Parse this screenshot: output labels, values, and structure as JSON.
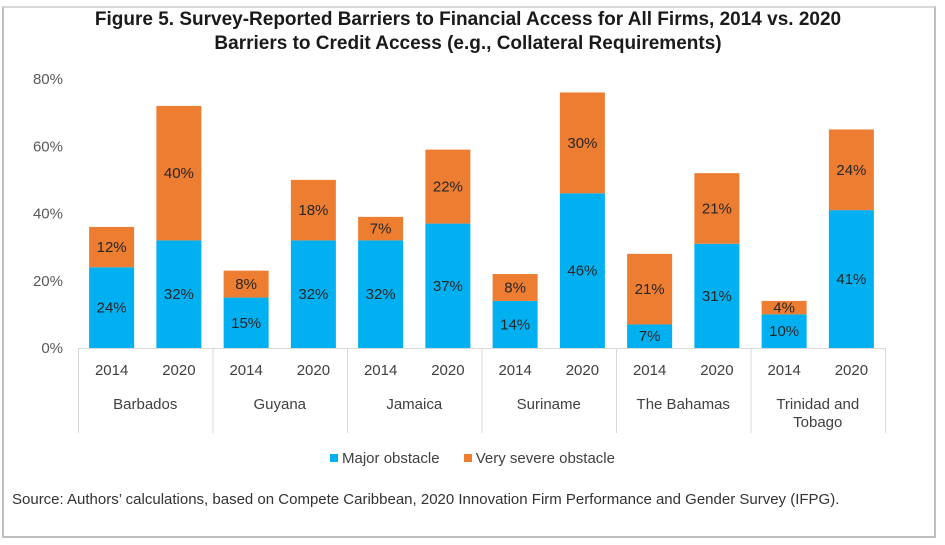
{
  "title": {
    "line1": "Figure 5. Survey-Reported Barriers to Financial Access for All Firms, 2014 vs. 2020",
    "line2": "Barriers to Credit Access (e.g., Collateral Requirements)"
  },
  "chart_data": {
    "type": "bar",
    "stacked": true,
    "title": "Figure 5. Survey-Reported Barriers to Financial Access for All Firms, 2014 vs. 2020",
    "subtitle": "Barriers to Credit Access (e.g., Collateral Requirements)",
    "xlabel": "",
    "ylabel": "",
    "ylim": [
      0,
      80
    ],
    "yticks": [
      0,
      20,
      40,
      60,
      80
    ],
    "ytick_labels": [
      "0%",
      "20%",
      "40%",
      "60%",
      "80%"
    ],
    "grid": false,
    "legend_position": "bottom",
    "groups": [
      {
        "name": "Barbados",
        "label_lines": [
          "Barbados"
        ],
        "years": [
          "2014",
          "2020"
        ]
      },
      {
        "name": "Guyana",
        "label_lines": [
          "Guyana"
        ],
        "years": [
          "2014",
          "2020"
        ]
      },
      {
        "name": "Jamaica",
        "label_lines": [
          "Jamaica"
        ],
        "years": [
          "2014",
          "2020"
        ]
      },
      {
        "name": "Suriname",
        "label_lines": [
          "Suriname"
        ],
        "years": [
          "2014",
          "2020"
        ]
      },
      {
        "name": "The Bahamas",
        "label_lines": [
          "The Bahamas"
        ],
        "years": [
          "2014",
          "2020"
        ]
      },
      {
        "name": "Trinidad and Tobago",
        "label_lines": [
          "Trinidad and",
          "Tobago"
        ],
        "years": [
          "2014",
          "2020"
        ]
      }
    ],
    "categories": [
      "Barbados 2014",
      "Barbados 2020",
      "Guyana 2014",
      "Guyana 2020",
      "Jamaica 2014",
      "Jamaica 2020",
      "Suriname 2014",
      "Suriname 2020",
      "The Bahamas 2014",
      "The Bahamas 2020",
      "Trinidad and Tobago 2014",
      "Trinidad and Tobago 2020"
    ],
    "series": [
      {
        "name": "Major obstacle",
        "color": "#00b0f0",
        "values": [
          24,
          32,
          15,
          32,
          32,
          37,
          14,
          46,
          7,
          31,
          10,
          41
        ]
      },
      {
        "name": "Very severe obstacle",
        "color": "#ed7d31",
        "values": [
          12,
          40,
          8,
          18,
          7,
          22,
          8,
          30,
          21,
          21,
          4,
          24
        ]
      }
    ],
    "value_suffix": "%"
  },
  "legend": {
    "items": [
      {
        "label": "Major obstacle",
        "color": "#00b0f0"
      },
      {
        "label": "Very severe obstacle",
        "color": "#ed7d31"
      }
    ]
  },
  "source": "Source: Authors’ calculations, based on Compete Caribbean, 2020 Innovation Firm Performance and Gender Survey (IFPG)."
}
